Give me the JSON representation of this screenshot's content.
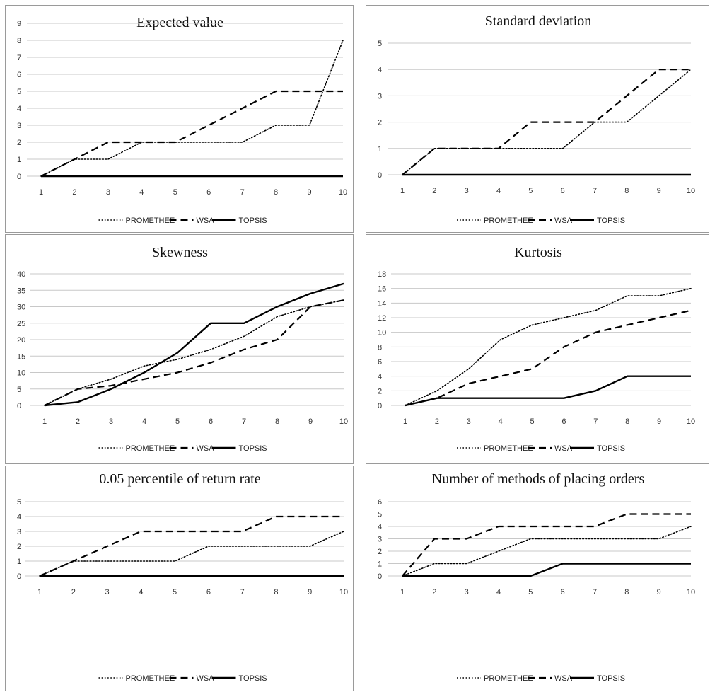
{
  "chart_data": [
    {
      "type": "line",
      "title": "Expected value",
      "categories": [
        "1",
        "2",
        "3",
        "4",
        "5",
        "6",
        "7",
        "8",
        "9",
        "10"
      ],
      "ylim": [
        0,
        9
      ],
      "yticks": [
        0,
        1,
        2,
        3,
        4,
        5,
        6,
        7,
        8,
        9
      ],
      "grid": true,
      "legend": "bottom",
      "series": [
        {
          "name": "PROMETHEE",
          "style": "dotted",
          "values": [
            0,
            1,
            1,
            2,
            2,
            2,
            2,
            3,
            3,
            8
          ]
        },
        {
          "name": "WSA",
          "style": "dashed",
          "values": [
            0,
            1,
            2,
            2,
            2,
            3,
            4,
            5,
            5,
            5
          ]
        },
        {
          "name": "TOPSIS",
          "style": "solid",
          "values": [
            0,
            0,
            0,
            0,
            0,
            0,
            0,
            0,
            0,
            0
          ]
        }
      ]
    },
    {
      "type": "line",
      "title": "Standard deviation",
      "categories": [
        "1",
        "2",
        "3",
        "4",
        "5",
        "6",
        "7",
        "8",
        "9",
        "10"
      ],
      "ylim": [
        0,
        5
      ],
      "yticks": [
        0,
        1,
        2,
        3,
        4,
        5
      ],
      "grid": true,
      "legend": "bottom",
      "series": [
        {
          "name": "PROMETHEE",
          "style": "dotted",
          "values": [
            0,
            1,
            1,
            1,
            1,
            1,
            2,
            2,
            3,
            4
          ]
        },
        {
          "name": "WSA",
          "style": "dashed",
          "values": [
            0,
            1,
            1,
            1,
            2,
            2,
            2,
            3,
            4,
            4
          ]
        },
        {
          "name": "TOPSIS",
          "style": "solid",
          "values": [
            0,
            0,
            0,
            0,
            0,
            0,
            0,
            0,
            0,
            0
          ]
        }
      ]
    },
    {
      "type": "line",
      "title": "Skewness",
      "categories": [
        "1",
        "2",
        "3",
        "4",
        "5",
        "6",
        "7",
        "8",
        "9",
        "10"
      ],
      "ylim": [
        0,
        40
      ],
      "yticks": [
        0,
        5,
        10,
        15,
        20,
        25,
        30,
        35,
        40
      ],
      "grid": true,
      "legend": "bottom",
      "series": [
        {
          "name": "PROMETHEE",
          "style": "dotted",
          "values": [
            0,
            5,
            8,
            12,
            14,
            17,
            21,
            27,
            30,
            32
          ]
        },
        {
          "name": "WSA",
          "style": "dashed",
          "values": [
            0,
            5,
            6,
            8,
            10,
            13,
            17,
            20,
            30,
            32
          ]
        },
        {
          "name": "TOPSIS",
          "style": "solid",
          "values": [
            0,
            1,
            5,
            10,
            16,
            25,
            25,
            30,
            34,
            37
          ]
        }
      ]
    },
    {
      "type": "line",
      "title": "Kurtosis",
      "categories": [
        "1",
        "2",
        "3",
        "4",
        "5",
        "6",
        "7",
        "8",
        "9",
        "10"
      ],
      "ylim": [
        0,
        18
      ],
      "yticks": [
        0,
        2,
        4,
        6,
        8,
        10,
        12,
        14,
        16,
        18
      ],
      "grid": true,
      "legend": "bottom",
      "series": [
        {
          "name": "PROMETHEE",
          "style": "dotted",
          "values": [
            0,
            2,
            5,
            9,
            11,
            12,
            13,
            15,
            15,
            16
          ]
        },
        {
          "name": "WSA",
          "style": "dashed",
          "values": [
            0,
            1,
            3,
            4,
            5,
            8,
            10,
            11,
            12,
            13
          ]
        },
        {
          "name": "TOPSIS",
          "style": "solid",
          "values": [
            0,
            1,
            1,
            1,
            1,
            1,
            2,
            4,
            4,
            4
          ]
        }
      ]
    },
    {
      "type": "line",
      "title": "0.05 percentile of return rate",
      "categories": [
        "1",
        "2",
        "3",
        "4",
        "5",
        "6",
        "7",
        "8",
        "9",
        "10"
      ],
      "ylim": [
        0,
        5
      ],
      "yticks": [
        0,
        1,
        2,
        3,
        4,
        5
      ],
      "grid": true,
      "legend": "bottom",
      "series": [
        {
          "name": "PROMETHEE",
          "style": "dotted",
          "values": [
            0,
            1,
            1,
            1,
            1,
            2,
            2,
            2,
            2,
            3
          ]
        },
        {
          "name": "WSA",
          "style": "dashed",
          "values": [
            0,
            1,
            2,
            3,
            3,
            3,
            3,
            4,
            4,
            4
          ]
        },
        {
          "name": "TOPSIS",
          "style": "solid",
          "values": [
            0,
            0,
            0,
            0,
            0,
            0,
            0,
            0,
            0,
            0
          ]
        }
      ]
    },
    {
      "type": "line",
      "title": "Number of methods of placing orders",
      "categories": [
        "1",
        "2",
        "3",
        "4",
        "5",
        "6",
        "7",
        "8",
        "9",
        "10"
      ],
      "ylim": [
        0,
        6
      ],
      "yticks": [
        0,
        1,
        2,
        3,
        4,
        5,
        6
      ],
      "grid": true,
      "legend": "bottom",
      "series": [
        {
          "name": "PROMETHEE",
          "style": "dotted",
          "values": [
            0,
            1,
            1,
            2,
            3,
            3,
            3,
            3,
            3,
            4
          ]
        },
        {
          "name": "WSA",
          "style": "dashed",
          "values": [
            0,
            3,
            3,
            4,
            4,
            4,
            4,
            5,
            5,
            5
          ]
        },
        {
          "name": "TOPSIS",
          "style": "solid",
          "values": [
            0,
            0,
            0,
            0,
            0,
            1,
            1,
            1,
            1,
            1
          ]
        }
      ]
    }
  ],
  "colors": {
    "line": "#000000",
    "grid": "#c8c8c8",
    "border": "#9a9a9a"
  }
}
